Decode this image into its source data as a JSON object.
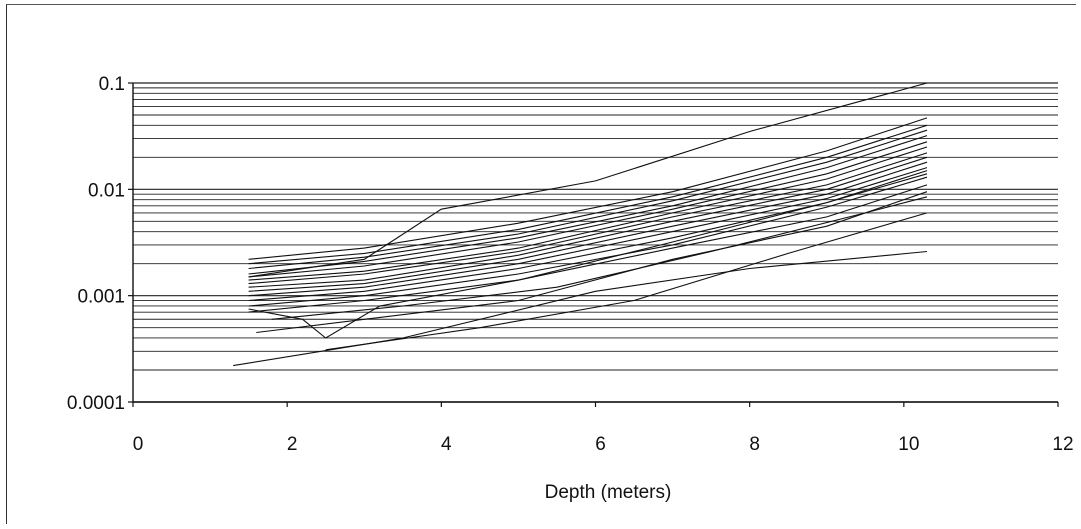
{
  "chart_data": {
    "type": "line",
    "title": "",
    "xlabel": "Depth (meters)",
    "ylabel": "",
    "y_scale": "log",
    "xlim": [
      0,
      12
    ],
    "ylim": [
      0.0001,
      0.1
    ],
    "x_ticks": [
      0,
      2,
      4,
      6,
      8,
      10,
      12
    ],
    "x_tick_labels": [
      "0",
      "2",
      "4",
      "6",
      "8",
      "10",
      "12"
    ],
    "y_ticks": [
      0.0001,
      0.001,
      0.01,
      0.1
    ],
    "y_tick_labels": [
      "0.0001",
      "0.001",
      "0.01",
      "0.1"
    ],
    "grid": "minor log gridlines on y",
    "legend": "none",
    "line_color": "#111111",
    "series": [
      {
        "x": [
          1.3,
          3.5,
          6.0,
          8.0,
          10.3
        ],
        "y": [
          0.00022,
          0.0004,
          0.0011,
          0.0018,
          0.0026
        ]
      },
      {
        "x": [
          2.5,
          4.5,
          6.5,
          8.5,
          10.3
        ],
        "y": [
          0.00031,
          0.0005,
          0.0009,
          0.0025,
          0.006
        ]
      },
      {
        "x": [
          1.5,
          3.0,
          5.0,
          7.0,
          9.0,
          10.3
        ],
        "y": [
          0.0007,
          0.0009,
          0.0014,
          0.0028,
          0.0055,
          0.011
        ]
      },
      {
        "x": [
          1.5,
          3.0,
          5.0,
          7.0,
          9.0,
          10.3
        ],
        "y": [
          0.0008,
          0.001,
          0.0016,
          0.003,
          0.0068,
          0.013
        ]
      },
      {
        "x": [
          1.5,
          3.0,
          5.0,
          7.0,
          9.0,
          10.3
        ],
        "y": [
          0.0009,
          0.0011,
          0.0018,
          0.0035,
          0.0075,
          0.015
        ]
      },
      {
        "x": [
          1.5,
          3.0,
          5.0,
          7.0,
          9.0,
          10.3
        ],
        "y": [
          0.001,
          0.0012,
          0.002,
          0.004,
          0.0082,
          0.016
        ]
      },
      {
        "x": [
          1.5,
          3.0,
          5.0,
          7.0,
          9.0,
          10.3
        ],
        "y": [
          0.0011,
          0.0013,
          0.0022,
          0.0045,
          0.009,
          0.018
        ]
      },
      {
        "x": [
          1.5,
          3.0,
          5.0,
          7.0,
          9.0,
          10.3
        ],
        "y": [
          0.0012,
          0.0014,
          0.0024,
          0.005,
          0.01,
          0.02
        ]
      },
      {
        "x": [
          1.5,
          3.0,
          5.0,
          7.0,
          9.0,
          10.3
        ],
        "y": [
          0.0013,
          0.0016,
          0.0026,
          0.0055,
          0.011,
          0.022
        ]
      },
      {
        "x": [
          1.5,
          3.0,
          5.0,
          7.0,
          9.0,
          10.3
        ],
        "y": [
          0.0014,
          0.0017,
          0.0028,
          0.006,
          0.0125,
          0.025
        ]
      },
      {
        "x": [
          1.5,
          3.0,
          5.0,
          7.0,
          9.0,
          10.3
        ],
        "y": [
          0.0015,
          0.0019,
          0.0032,
          0.0065,
          0.014,
          0.028
        ]
      },
      {
        "x": [
          1.5,
          3.0,
          5.0,
          7.0,
          9.0,
          10.3
        ],
        "y": [
          0.0016,
          0.0021,
          0.0035,
          0.007,
          0.016,
          0.032
        ]
      },
      {
        "x": [
          1.5,
          3.0,
          5.0,
          7.0,
          9.0,
          10.3
        ],
        "y": [
          0.0018,
          0.0023,
          0.0038,
          0.0078,
          0.018,
          0.036
        ]
      },
      {
        "x": [
          1.5,
          3.0,
          5.0,
          7.0,
          9.0,
          10.3
        ],
        "y": [
          0.002,
          0.0025,
          0.0042,
          0.0085,
          0.02,
          0.04
        ]
      },
      {
        "x": [
          1.5,
          3.0,
          5.0,
          7.0,
          9.0,
          10.3
        ],
        "y": [
          0.0022,
          0.0028,
          0.0048,
          0.0095,
          0.023,
          0.047
        ]
      },
      {
        "x": [
          1.5,
          2.2,
          2.5,
          3.2,
          5.0,
          7.0,
          9.0,
          10.3
        ],
        "y": [
          0.00075,
          0.0006,
          0.0004,
          0.0008,
          0.0014,
          0.0032,
          0.0075,
          0.014
        ]
      },
      {
        "x": [
          1.5,
          3.0,
          4.0,
          6.0,
          8.0,
          10.3
        ],
        "y": [
          0.0015,
          0.0022,
          0.0065,
          0.012,
          0.035,
          0.1
        ]
      },
      {
        "x": [
          1.6,
          3.0,
          5.0,
          7.0,
          9.0,
          10.3
        ],
        "y": [
          0.00045,
          0.0006,
          0.0009,
          0.0022,
          0.0045,
          0.0095
        ]
      },
      {
        "x": [
          1.8,
          3.5,
          5.5,
          7.5,
          9.5,
          10.3
        ],
        "y": [
          0.0006,
          0.0008,
          0.0012,
          0.0026,
          0.006,
          0.0085
        ]
      }
    ]
  }
}
